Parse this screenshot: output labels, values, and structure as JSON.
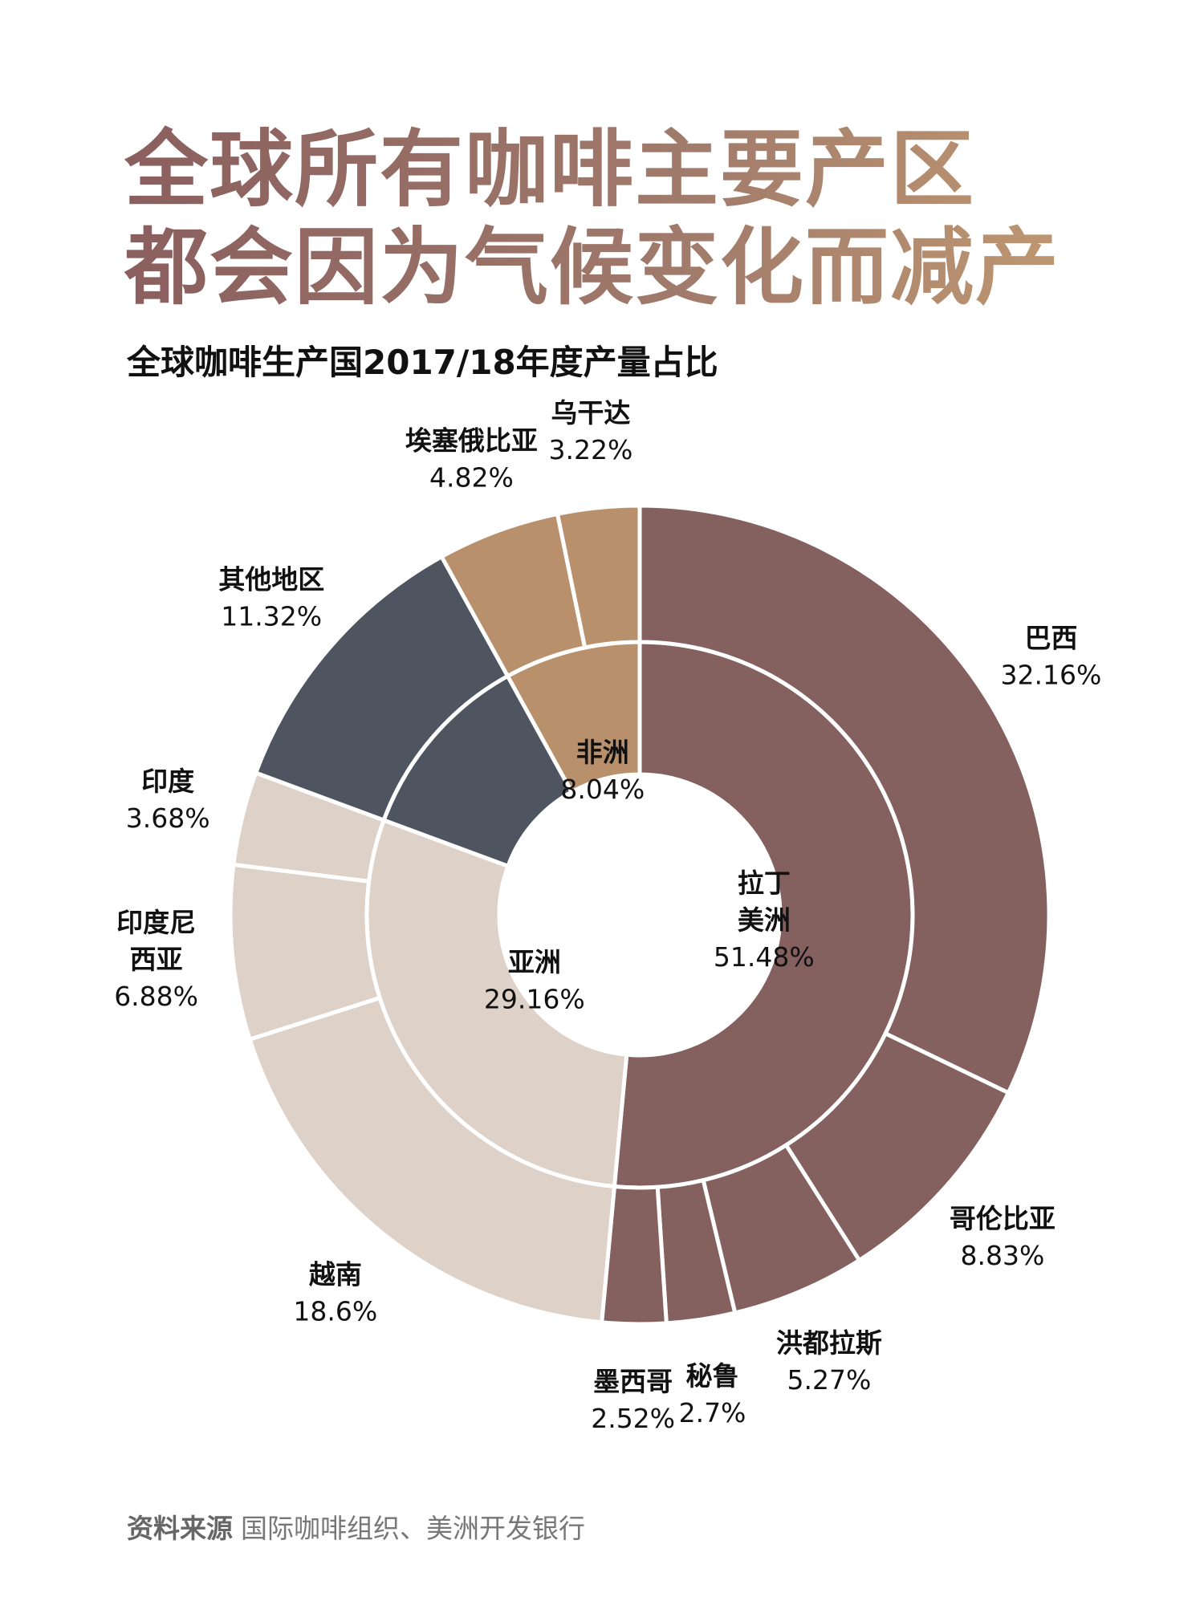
{
  "headline": {
    "line1": "全球所有咖啡主要产区",
    "line2": "都会因为气候变化而减产"
  },
  "subtitle": "全球咖啡生产国2017/18年度产量占比",
  "source": {
    "label": "资料来源",
    "text": "国际咖啡组织、美洲开发银行"
  },
  "colors": {
    "latin_america": "#84605f",
    "asia": "#ddd1c8",
    "other": "#4f5461",
    "africa": "#b8916c",
    "separator": "#ffffff"
  },
  "chart_data": {
    "type": "donut-sunburst",
    "title": "全球咖啡生产国2017/18年度产量占比",
    "unit": "%",
    "inner": [
      {
        "id": "latin_america",
        "name": "拉丁美洲",
        "label_lines": [
          "拉丁",
          "美洲"
        ],
        "value": 51.48,
        "value_label": "51.48%"
      },
      {
        "id": "asia",
        "name": "亚洲",
        "label_lines": [
          "亚洲"
        ],
        "value": 29.16,
        "value_label": "29.16%"
      },
      {
        "id": "other",
        "name": "其他地区",
        "label_lines": [],
        "value": 11.32,
        "value_label": ""
      },
      {
        "id": "africa",
        "name": "非洲",
        "label_lines": [
          "非洲"
        ],
        "value": 8.04,
        "value_label": "8.04%"
      }
    ],
    "outer": [
      {
        "name": "巴西",
        "label_lines": [
          "巴西"
        ],
        "group": "latin_america",
        "value": 32.16,
        "value_label": "32.16%"
      },
      {
        "name": "哥伦比亚",
        "label_lines": [
          "哥伦比亚"
        ],
        "group": "latin_america",
        "value": 8.83,
        "value_label": "8.83%"
      },
      {
        "name": "洪都拉斯",
        "label_lines": [
          "洪都拉斯"
        ],
        "group": "latin_america",
        "value": 5.27,
        "value_label": "5.27%"
      },
      {
        "name": "秘鲁",
        "label_lines": [
          "秘鲁"
        ],
        "group": "latin_america",
        "value": 2.7,
        "value_label": "2.7%"
      },
      {
        "name": "墨西哥",
        "label_lines": [
          "墨西哥"
        ],
        "group": "latin_america",
        "value": 2.52,
        "value_label": "2.52%"
      },
      {
        "name": "越南",
        "label_lines": [
          "越南"
        ],
        "group": "asia",
        "value": 18.6,
        "value_label": "18.6%"
      },
      {
        "name": "印度尼西亚",
        "label_lines": [
          "印度尼",
          "西亚"
        ],
        "group": "asia",
        "value": 6.88,
        "value_label": "6.88%"
      },
      {
        "name": "印度",
        "label_lines": [
          "印度"
        ],
        "group": "asia",
        "value": 3.68,
        "value_label": "3.68%"
      },
      {
        "name": "其他地区",
        "label_lines": [
          "其他地区"
        ],
        "group": "other",
        "value": 11.32,
        "value_label": "11.32%"
      },
      {
        "name": "埃塞俄比亚",
        "label_lines": [
          "埃塞俄比亚"
        ],
        "group": "africa",
        "value": 4.82,
        "value_label": "4.82%"
      },
      {
        "name": "乌干达",
        "label_lines": [
          "乌干达"
        ],
        "group": "africa",
        "value": 3.22,
        "value_label": "3.22%"
      }
    ]
  }
}
